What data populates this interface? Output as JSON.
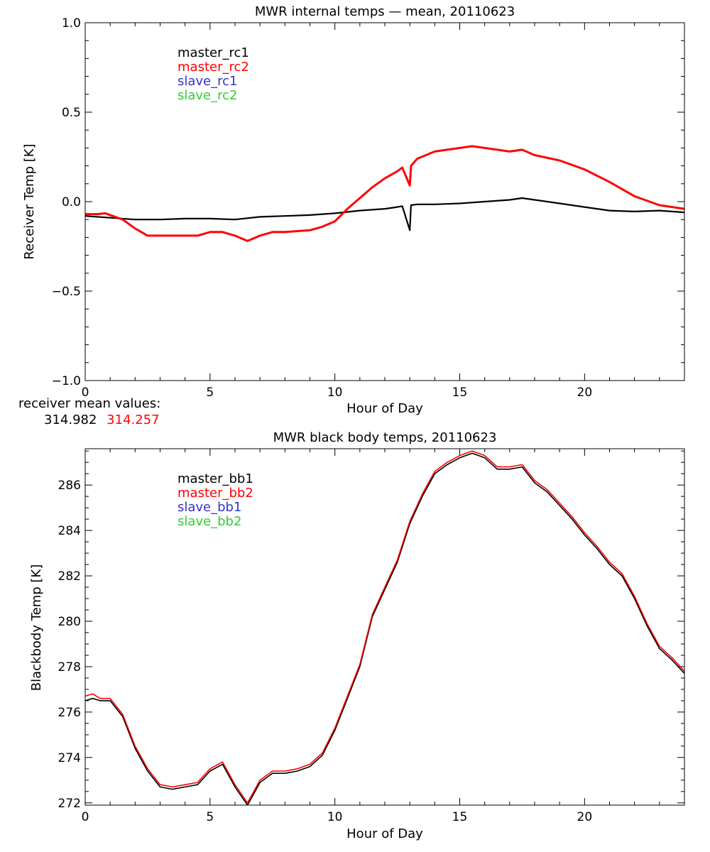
{
  "chart_data": [
    {
      "id": "receiver",
      "type": "line",
      "title": "MWR internal temps — mean, 20110623",
      "xlabel": "Hour of Day",
      "ylabel": "Receiver Temp [K]",
      "xlim": [
        0,
        24
      ],
      "ylim": [
        -1.0,
        1.0
      ],
      "xticks": [
        0,
        5,
        10,
        15,
        20
      ],
      "xtick_labels": [
        "0",
        "5",
        "10",
        "15",
        "20"
      ],
      "yticks": [
        -1.0,
        -0.5,
        0.0,
        0.5,
        1.0
      ],
      "ytick_labels": [
        "−1.0",
        "−0.5",
        "0.0",
        "0.5",
        "1.0"
      ],
      "legend_position": "top-left",
      "legend": [
        {
          "label": "master_rc1",
          "color": "#000000"
        },
        {
          "label": "master_rc2",
          "color": "#ff0000"
        },
        {
          "label": "slave_rc1",
          "color": "#3333cc"
        },
        {
          "label": "slave_rc2",
          "color": "#33cc33"
        }
      ],
      "series": [
        {
          "name": "master_rc1",
          "color": "#000000",
          "x": [
            0,
            1,
            2,
            3,
            4,
            5,
            6,
            7,
            8,
            9,
            10,
            11,
            12,
            12.5,
            12.7,
            13.0,
            13.05,
            13.3,
            14,
            15,
            16,
            17,
            17.5,
            18,
            19,
            20,
            21,
            22,
            23,
            24
          ],
          "y": [
            -0.08,
            -0.09,
            -0.1,
            -0.1,
            -0.095,
            -0.095,
            -0.1,
            -0.085,
            -0.08,
            -0.075,
            -0.065,
            -0.05,
            -0.04,
            -0.03,
            -0.025,
            -0.16,
            -0.02,
            -0.015,
            -0.015,
            -0.01,
            0.0,
            0.01,
            0.02,
            0.01,
            -0.01,
            -0.03,
            -0.05,
            -0.055,
            -0.05,
            -0.06
          ]
        },
        {
          "name": "master_rc2",
          "color": "#ff0000",
          "x": [
            0,
            0.5,
            0.8,
            1.5,
            2,
            2.5,
            3,
            4,
            4.5,
            5,
            5.5,
            6,
            6.5,
            7,
            7.5,
            8,
            9,
            9.5,
            10,
            10.5,
            11,
            11.5,
            12,
            12.5,
            12.7,
            13.0,
            13.05,
            13.3,
            14,
            15,
            15.5,
            16,
            17,
            17.5,
            18,
            19,
            20,
            21,
            22,
            23,
            24
          ],
          "y": [
            -0.07,
            -0.07,
            -0.065,
            -0.1,
            -0.15,
            -0.19,
            -0.19,
            -0.19,
            -0.19,
            -0.17,
            -0.17,
            -0.19,
            -0.22,
            -0.19,
            -0.17,
            -0.17,
            -0.16,
            -0.14,
            -0.11,
            -0.04,
            0.02,
            0.08,
            0.13,
            0.17,
            0.19,
            0.09,
            0.2,
            0.24,
            0.28,
            0.3,
            0.31,
            0.3,
            0.28,
            0.29,
            0.26,
            0.23,
            0.18,
            0.11,
            0.03,
            -0.02,
            -0.04
          ]
        }
      ],
      "annotation": {
        "label": "receiver mean values:",
        "values": [
          {
            "text": "314.982",
            "color": "#000000"
          },
          {
            "text": "314.257",
            "color": "#ff0000"
          }
        ]
      }
    },
    {
      "id": "blackbody",
      "type": "line",
      "title": "MWR black body temps, 20110623",
      "xlabel": "Hour of Day",
      "ylabel": "Blackbody Temp [K]",
      "xlim": [
        0,
        24
      ],
      "ylim": [
        271.9,
        287.6
      ],
      "xticks": [
        0,
        5,
        10,
        15,
        20
      ],
      "xtick_labels": [
        "0",
        "5",
        "10",
        "15",
        "20"
      ],
      "yticks": [
        272,
        274,
        276,
        278,
        280,
        282,
        284,
        286
      ],
      "ytick_labels": [
        "272",
        "274",
        "276",
        "278",
        "280",
        "282",
        "284",
        "286"
      ],
      "legend_position": "top-left",
      "legend": [
        {
          "label": "master_bb1",
          "color": "#000000"
        },
        {
          "label": "master_bb2",
          "color": "#ff0000"
        },
        {
          "label": "slave_bb1",
          "color": "#3333cc"
        },
        {
          "label": "slave_bb2",
          "color": "#33cc33"
        }
      ],
      "series": [
        {
          "name": "master_bb1",
          "color": "#000000",
          "x": [
            0,
            0.3,
            0.6,
            1,
            1.5,
            2,
            2.5,
            3,
            3.5,
            4,
            4.5,
            5,
            5.5,
            6,
            6.5,
            7,
            7.5,
            8,
            8.5,
            9,
            9.5,
            10,
            10.5,
            11,
            11.5,
            12,
            12.5,
            13,
            13.5,
            14,
            14.5,
            15,
            15.5,
            16,
            16.5,
            17,
            17.5,
            18,
            18.5,
            19,
            19.5,
            20,
            20.5,
            21,
            21.5,
            22,
            22.5,
            23,
            23.5,
            24
          ],
          "y": [
            276.5,
            276.6,
            276.5,
            276.5,
            275.8,
            274.4,
            273.4,
            272.7,
            272.6,
            272.7,
            272.8,
            273.4,
            273.7,
            272.7,
            271.9,
            272.9,
            273.3,
            273.3,
            273.4,
            273.6,
            274.1,
            275.2,
            276.6,
            278.0,
            280.2,
            281.4,
            282.6,
            284.3,
            285.5,
            286.5,
            286.9,
            287.2,
            287.4,
            287.2,
            286.7,
            286.7,
            286.8,
            286.1,
            285.7,
            285.1,
            284.5,
            283.8,
            283.2,
            282.5,
            282.0,
            281.0,
            279.8,
            278.8,
            278.3,
            277.7
          ]
        },
        {
          "name": "master_bb2",
          "color": "#ff0000",
          "x": [
            0,
            0.3,
            0.6,
            1,
            1.5,
            2,
            2.5,
            3,
            3.5,
            4,
            4.5,
            5,
            5.5,
            6,
            6.5,
            7,
            7.5,
            8,
            8.5,
            9,
            9.5,
            10,
            10.5,
            11,
            11.5,
            12,
            12.5,
            13,
            13.5,
            14,
            14.5,
            15,
            15.5,
            16,
            16.5,
            17,
            17.5,
            18,
            18.5,
            19,
            19.5,
            20,
            20.5,
            21,
            21.5,
            22,
            22.5,
            23,
            23.5,
            24
          ],
          "y": [
            276.7,
            276.8,
            276.6,
            276.6,
            275.9,
            274.5,
            273.5,
            272.8,
            272.7,
            272.8,
            272.9,
            273.5,
            273.8,
            272.8,
            272.0,
            273.0,
            273.4,
            273.4,
            273.5,
            273.7,
            274.2,
            275.3,
            276.7,
            278.1,
            280.3,
            281.5,
            282.7,
            284.4,
            285.6,
            286.6,
            287.0,
            287.3,
            287.5,
            287.3,
            286.8,
            286.8,
            286.9,
            286.2,
            285.8,
            285.2,
            284.6,
            283.9,
            283.3,
            282.6,
            282.1,
            281.1,
            279.9,
            278.9,
            278.4,
            277.8
          ]
        }
      ]
    }
  ]
}
